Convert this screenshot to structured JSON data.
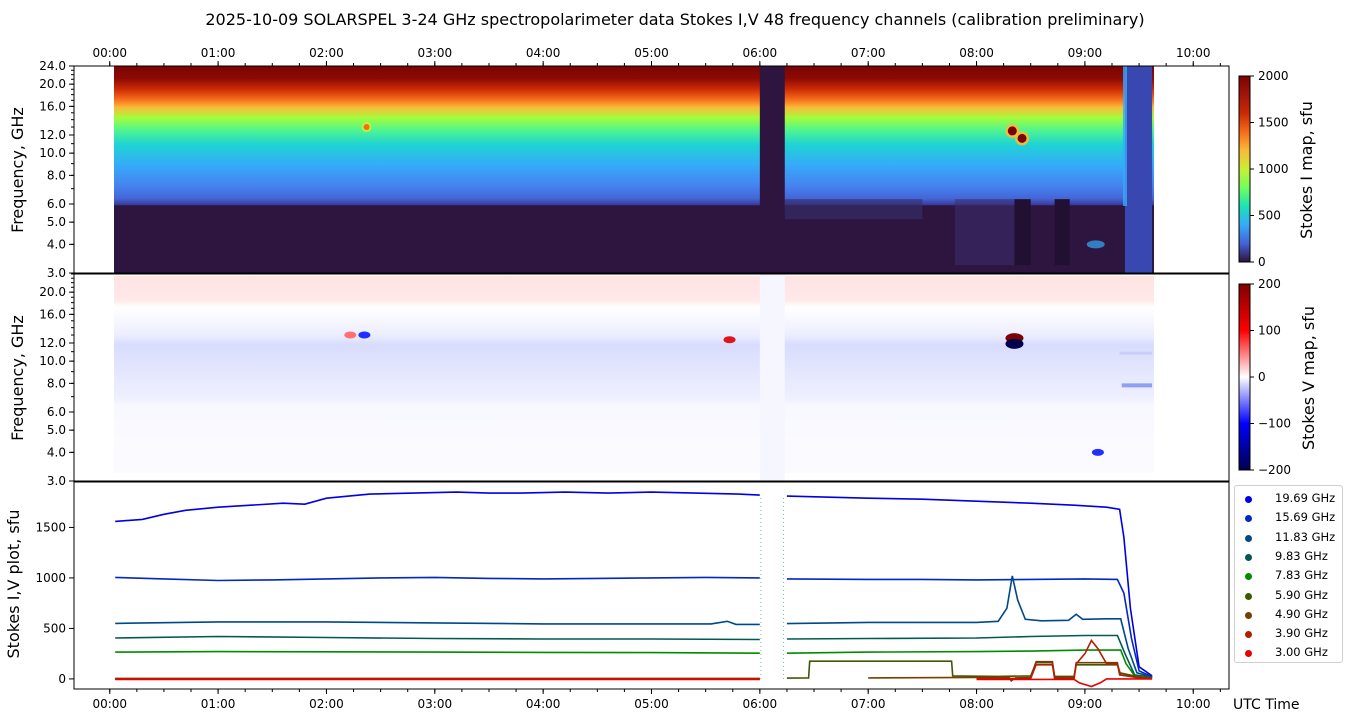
{
  "title": "2025-10-09  SOLARSPEL  3-24 GHz spectropolarimeter data   Stokes I,V   48 frequency channels   (calibration preliminary)",
  "colors": {
    "gap_fill": "#2e1540",
    "low_band": "#2e1540",
    "legend_border": "#cfcfcf"
  },
  "chart_data": [
    {
      "type": "heatmap",
      "name": "stokes_i_map",
      "ylabel": "Frequency, GHz",
      "x_ticks_top": [
        "00:00",
        "01:00",
        "02:00",
        "03:00",
        "04:00",
        "05:00",
        "06:00",
        "07:00",
        "08:00",
        "09:00",
        "10:00"
      ],
      "y_ticks": [
        "3.0",
        "4.0",
        "5.0",
        "6.0",
        "8.0",
        "10.0",
        "12.0",
        "16.0",
        "20.0",
        "24.0"
      ],
      "y_tick_values": [
        3,
        4,
        5,
        6,
        8,
        10,
        12,
        16,
        20,
        24
      ],
      "y_scale": "log",
      "ylim": [
        3,
        24
      ],
      "xlim_hours": [
        -0.33,
        10.33
      ],
      "data_range_hours": [
        0.05,
        9.62
      ],
      "colorbar_label": "Stokes I map, sfu",
      "colorbar_ticks": [
        "0",
        "500",
        "1000",
        "1500",
        "2000"
      ],
      "colorbar_range": [
        0,
        2000
      ],
      "colormap": "turbo",
      "gaps_hours": [
        [
          6.0,
          6.23
        ]
      ],
      "instrument_off_after_hours": 9.37,
      "bright_spots": [
        {
          "t": 2.37,
          "f": 13.0,
          "value": 1500
        },
        {
          "t": 8.33,
          "f": 12.5,
          "value": 2000
        },
        {
          "t": 8.42,
          "f": 11.6,
          "value": 2000
        }
      ]
    },
    {
      "type": "heatmap",
      "name": "stokes_v_map",
      "ylabel": "Frequency, GHz",
      "y_ticks": [
        "3.0",
        "4.0",
        "5.0",
        "6.0",
        "8.0",
        "10.0",
        "12.0",
        "16.0",
        "20.0"
      ],
      "y_tick_values": [
        3,
        4,
        5,
        6,
        8,
        10,
        12,
        16,
        20
      ],
      "y_scale": "log",
      "ylim": [
        3,
        24
      ],
      "xlim_hours": [
        -0.33,
        10.33
      ],
      "colorbar_label": "Stokes V map, sfu",
      "colorbar_ticks": [
        "200",
        "100",
        "0",
        "−100",
        "−200"
      ],
      "colorbar_range": [
        -200,
        200
      ],
      "colormap": "seismic",
      "spots": [
        {
          "t": 2.22,
          "f": 13.0,
          "value": 90
        },
        {
          "t": 2.35,
          "f": 13.0,
          "value": -130
        },
        {
          "t": 5.72,
          "f": 12.4,
          "value": 170
        },
        {
          "t": 8.35,
          "f": 12.6,
          "value": 220
        },
        {
          "t": 8.35,
          "f": 11.9,
          "value": -220
        },
        {
          "t": 9.12,
          "f": 4.0,
          "value": -130
        }
      ]
    },
    {
      "type": "line",
      "name": "stokes_iv_plot",
      "ylabel": "Stokes I,V plot, sfu",
      "xlabel": "UTC Time",
      "x_ticks": [
        "00:00",
        "01:00",
        "02:00",
        "03:00",
        "04:00",
        "05:00",
        "06:00",
        "07:00",
        "08:00",
        "09:00",
        "10:00"
      ],
      "x_tick_hours": [
        0,
        1,
        2,
        3,
        4,
        5,
        6,
        7,
        8,
        9,
        10
      ],
      "xlim_hours": [
        -0.33,
        10.33
      ],
      "ylim": [
        -100,
        1950
      ],
      "y_ticks": [
        "0",
        "500",
        "1000",
        "1500"
      ],
      "y_tick_values": [
        0,
        500,
        1000,
        1500
      ],
      "legend_position": "right",
      "series": [
        {
          "name": "19.69 GHz",
          "color": "#0000e6",
          "points": [
            [
              0.05,
              1560
            ],
            [
              0.3,
              1580
            ],
            [
              0.5,
              1630
            ],
            [
              0.7,
              1670
            ],
            [
              1.0,
              1700
            ],
            [
              1.3,
              1720
            ],
            [
              1.6,
              1740
            ],
            [
              1.8,
              1730
            ],
            [
              2.0,
              1790
            ],
            [
              2.4,
              1830
            ],
            [
              2.8,
              1840
            ],
            [
              3.2,
              1850
            ],
            [
              3.5,
              1840
            ],
            [
              3.8,
              1840
            ],
            [
              4.2,
              1850
            ],
            [
              4.6,
              1840
            ],
            [
              5.0,
              1850
            ],
            [
              5.4,
              1840
            ],
            [
              5.8,
              1830
            ],
            [
              6.0,
              1820
            ],
            [
              6.25,
              1810
            ],
            [
              6.6,
              1800
            ],
            [
              7.0,
              1790
            ],
            [
              7.5,
              1780
            ],
            [
              8.0,
              1760
            ],
            [
              8.5,
              1740
            ],
            [
              8.9,
              1720
            ],
            [
              9.2,
              1700
            ],
            [
              9.32,
              1680
            ],
            [
              9.36,
              1400
            ],
            [
              9.42,
              700
            ],
            [
              9.5,
              120
            ],
            [
              9.62,
              30
            ]
          ]
        },
        {
          "name": "15.69 GHz",
          "color": "#0028c8",
          "points": [
            [
              0.05,
              1005
            ],
            [
              0.5,
              990
            ],
            [
              1.0,
              975
            ],
            [
              1.5,
              980
            ],
            [
              2.0,
              990
            ],
            [
              2.5,
              1000
            ],
            [
              3.0,
              1005
            ],
            [
              3.5,
              995
            ],
            [
              4.0,
              990
            ],
            [
              4.5,
              995
            ],
            [
              5.0,
              1000
            ],
            [
              5.5,
              1005
            ],
            [
              6.0,
              1000
            ],
            [
              6.25,
              990
            ],
            [
              7.0,
              985
            ],
            [
              7.5,
              985
            ],
            [
              8.0,
              980
            ],
            [
              8.5,
              985
            ],
            [
              9.0,
              990
            ],
            [
              9.3,
              985
            ],
            [
              9.36,
              850
            ],
            [
              9.43,
              400
            ],
            [
              9.5,
              80
            ],
            [
              9.62,
              20
            ]
          ]
        },
        {
          "name": "11.83 GHz",
          "color": "#00488c",
          "points": [
            [
              0.05,
              550
            ],
            [
              1.0,
              565
            ],
            [
              2.0,
              565
            ],
            [
              3.0,
              555
            ],
            [
              4.0,
              545
            ],
            [
              5.0,
              545
            ],
            [
              5.55,
              545
            ],
            [
              5.7,
              570
            ],
            [
              5.78,
              540
            ],
            [
              6.0,
              540
            ],
            [
              6.25,
              548
            ],
            [
              7.0,
              560
            ],
            [
              7.5,
              560
            ],
            [
              8.0,
              560
            ],
            [
              8.2,
              570
            ],
            [
              8.28,
              700
            ],
            [
              8.33,
              1020
            ],
            [
              8.38,
              780
            ],
            [
              8.45,
              590
            ],
            [
              8.6,
              575
            ],
            [
              8.85,
              580
            ],
            [
              8.92,
              640
            ],
            [
              8.98,
              590
            ],
            [
              9.2,
              595
            ],
            [
              9.33,
              595
            ],
            [
              9.4,
              300
            ],
            [
              9.48,
              60
            ],
            [
              9.62,
              20
            ]
          ]
        },
        {
          "name": "9.83 GHz",
          "color": "#005a50",
          "points": [
            [
              0.05,
              405
            ],
            [
              1.0,
              420
            ],
            [
              2.0,
              410
            ],
            [
              3.0,
              400
            ],
            [
              4.0,
              395
            ],
            [
              5.0,
              395
            ],
            [
              6.0,
              390
            ],
            [
              6.25,
              395
            ],
            [
              7.0,
              400
            ],
            [
              8.0,
              405
            ],
            [
              8.5,
              420
            ],
            [
              9.0,
              430
            ],
            [
              9.3,
              430
            ],
            [
              9.37,
              250
            ],
            [
              9.46,
              40
            ],
            [
              9.62,
              15
            ]
          ]
        },
        {
          "name": "7.83 GHz",
          "color": "#008c00",
          "points": [
            [
              0.05,
              265
            ],
            [
              1.0,
              270
            ],
            [
              2.0,
              268
            ],
            [
              3.0,
              265
            ],
            [
              4.0,
              262
            ],
            [
              5.0,
              260
            ],
            [
              6.0,
              255
            ],
            [
              6.25,
              255
            ],
            [
              7.0,
              265
            ],
            [
              8.0,
              270
            ],
            [
              8.5,
              275
            ],
            [
              9.0,
              285
            ],
            [
              9.33,
              285
            ],
            [
              9.38,
              150
            ],
            [
              9.46,
              30
            ],
            [
              9.62,
              10
            ]
          ]
        },
        {
          "name": "5.90 GHz",
          "color": "#3c5a00",
          "points": [
            [
              0.05,
              5
            ],
            [
              6.0,
              5
            ],
            [
              6.25,
              8
            ],
            [
              6.45,
              10
            ],
            [
              6.46,
              175
            ],
            [
              7.77,
              175
            ],
            [
              7.78,
              30
            ],
            [
              8.2,
              25
            ],
            [
              8.5,
              30
            ],
            [
              8.55,
              160
            ],
            [
              8.7,
              160
            ],
            [
              8.72,
              25
            ],
            [
              8.9,
              25
            ],
            [
              8.92,
              140
            ],
            [
              9.3,
              140
            ],
            [
              9.32,
              60
            ],
            [
              9.5,
              20
            ],
            [
              9.62,
              10
            ]
          ]
        },
        {
          "name": "4.90 GHz",
          "color": "#7a3c00",
          "points": [
            [
              0.05,
              0
            ],
            [
              6.0,
              0
            ],
            [
              7.0,
              10
            ],
            [
              8.0,
              15
            ],
            [
              8.3,
              15
            ],
            [
              8.32,
              -20
            ],
            [
              8.36,
              10
            ],
            [
              8.5,
              15
            ],
            [
              8.55,
              170
            ],
            [
              8.7,
              170
            ],
            [
              8.72,
              15
            ],
            [
              8.9,
              15
            ],
            [
              8.92,
              160
            ],
            [
              9.3,
              160
            ],
            [
              9.32,
              40
            ],
            [
              9.5,
              15
            ],
            [
              9.62,
              5
            ]
          ]
        },
        {
          "name": "3.90 GHz",
          "color": "#b41e00",
          "points": [
            [
              0.05,
              0
            ],
            [
              6.0,
              0
            ],
            [
              8.0,
              5
            ],
            [
              8.5,
              5
            ],
            [
              8.55,
              140
            ],
            [
              8.7,
              140
            ],
            [
              8.72,
              5
            ],
            [
              8.9,
              5
            ],
            [
              8.92,
              150
            ],
            [
              9.0,
              250
            ],
            [
              9.06,
              380
            ],
            [
              9.12,
              300
            ],
            [
              9.2,
              150
            ],
            [
              9.3,
              145
            ],
            [
              9.33,
              40
            ],
            [
              9.5,
              10
            ],
            [
              9.62,
              5
            ]
          ]
        },
        {
          "name": "3.00 GHz",
          "color": "#e60000",
          "points": [
            [
              0.05,
              -5
            ],
            [
              6.0,
              -5
            ],
            [
              8.0,
              -5
            ],
            [
              8.9,
              -5
            ],
            [
              8.95,
              -40
            ],
            [
              9.06,
              -75
            ],
            [
              9.14,
              -40
            ],
            [
              9.2,
              0
            ],
            [
              9.62,
              0
            ]
          ]
        }
      ]
    }
  ]
}
